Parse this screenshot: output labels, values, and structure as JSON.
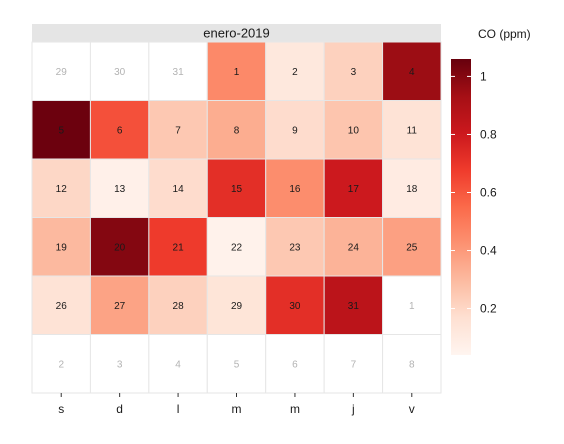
{
  "chart_data": {
    "type": "heatmap",
    "title": "",
    "strip_label": "enero-2019",
    "xlabel": "",
    "ylabel": "",
    "weekdays": [
      "s",
      "d",
      "l",
      "m",
      "m",
      "j",
      "v"
    ],
    "legend": {
      "title": "CO (ppm)",
      "ticks": [
        "0.2",
        "0.4",
        "0.6",
        "0.8",
        "1"
      ],
      "tick_values": [
        0.2,
        0.4,
        0.6,
        0.8,
        1.0
      ],
      "range": [
        0.04,
        1.06
      ],
      "placement": "right",
      "colors": [
        "#fff5f0",
        "#fee0d2",
        "#fcbba1",
        "#fc9272",
        "#fb6a4a",
        "#ef3b2c",
        "#cb181d",
        "#a50f15",
        "#67000d"
      ]
    },
    "in_month_text_color": "#1a1a1a",
    "out_month_text_color": "#b3b3b3",
    "weeks": [
      [
        {
          "day": "29",
          "value": null
        },
        {
          "day": "30",
          "value": null
        },
        {
          "day": "31",
          "value": null
        },
        {
          "day": "1",
          "value": 0.45
        },
        {
          "day": "2",
          "value": 0.12
        },
        {
          "day": "3",
          "value": 0.22
        },
        {
          "day": "4",
          "value": 0.95
        }
      ],
      [
        {
          "day": "5",
          "value": 1.05
        },
        {
          "day": "6",
          "value": 0.62
        },
        {
          "day": "7",
          "value": 0.25
        },
        {
          "day": "8",
          "value": 0.34
        },
        {
          "day": "9",
          "value": 0.18
        },
        {
          "day": "10",
          "value": 0.26
        },
        {
          "day": "11",
          "value": 0.15
        }
      ],
      [
        {
          "day": "12",
          "value": 0.2
        },
        {
          "day": "13",
          "value": 0.07
        },
        {
          "day": "14",
          "value": 0.18
        },
        {
          "day": "15",
          "value": 0.72
        },
        {
          "day": "16",
          "value": 0.44
        },
        {
          "day": "17",
          "value": 0.8
        },
        {
          "day": "18",
          "value": 0.1
        }
      ],
      [
        {
          "day": "19",
          "value": 0.3
        },
        {
          "day": "20",
          "value": 1.0
        },
        {
          "day": "21",
          "value": 0.68
        },
        {
          "day": "22",
          "value": 0.06
        },
        {
          "day": "23",
          "value": 0.25
        },
        {
          "day": "24",
          "value": 0.32
        },
        {
          "day": "25",
          "value": 0.38
        }
      ],
      [
        {
          "day": "26",
          "value": 0.15
        },
        {
          "day": "27",
          "value": 0.37
        },
        {
          "day": "28",
          "value": 0.22
        },
        {
          "day": "29",
          "value": 0.14
        },
        {
          "day": "30",
          "value": 0.72
        },
        {
          "day": "31",
          "value": 0.86
        },
        {
          "day": "1",
          "value": null
        }
      ],
      [
        {
          "day": "2",
          "value": null
        },
        {
          "day": "3",
          "value": null
        },
        {
          "day": "4",
          "value": null
        },
        {
          "day": "5",
          "value": null
        },
        {
          "day": "6",
          "value": null
        },
        {
          "day": "7",
          "value": null
        },
        {
          "day": "8",
          "value": null
        }
      ]
    ]
  }
}
